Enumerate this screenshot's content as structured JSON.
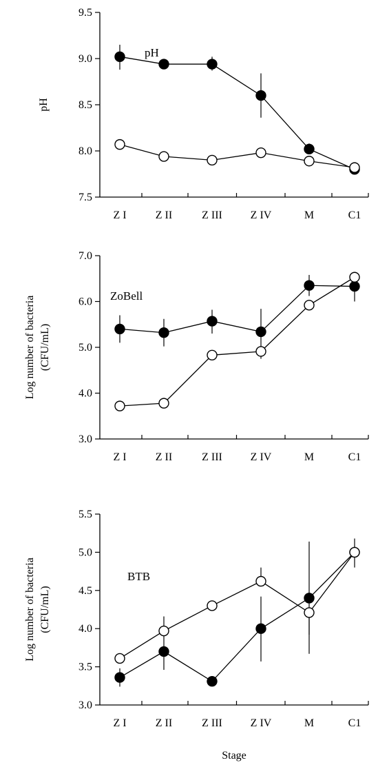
{
  "chart_data": [
    {
      "type": "line",
      "panel_label": "pH",
      "ylabel": "pH",
      "ylabel_lines": [
        "pH"
      ],
      "ylim": [
        7.5,
        9.5
      ],
      "yticks": [
        7.5,
        8.0,
        8.5,
        9.0,
        9.5
      ],
      "ytick_labels": [
        "7.5",
        "8.0",
        "8.5",
        "9.0",
        "9.5"
      ],
      "categories": [
        "Z I",
        "Z II",
        "Z III",
        "Z IV",
        "M",
        "C1"
      ],
      "series": [
        {
          "marker": "filled",
          "values": [
            9.02,
            8.94,
            8.94,
            8.6,
            8.02,
            7.8
          ],
          "err_low": [
            8.88,
            8.89,
            8.87,
            8.36,
            7.98,
            7.76
          ],
          "err_high": [
            9.15,
            8.98,
            9.02,
            8.84,
            8.08,
            7.84
          ]
        },
        {
          "marker": "open",
          "values": [
            8.07,
            7.94,
            7.9,
            7.98,
            7.89,
            7.82
          ],
          "err_low": [
            8.07,
            7.94,
            7.9,
            7.98,
            7.89,
            7.82
          ],
          "err_high": [
            8.07,
            7.94,
            7.9,
            7.98,
            7.89,
            7.82
          ]
        }
      ]
    },
    {
      "type": "line",
      "panel_label": "ZoBell",
      "ylabel": "Log number of bacteria (CFU/mL)",
      "ylabel_lines": [
        "Log number of bacteria",
        "(CFU/mL)"
      ],
      "ylim": [
        3.0,
        7.0
      ],
      "yticks": [
        3.0,
        4.0,
        5.0,
        6.0,
        7.0
      ],
      "ytick_labels": [
        "3.0",
        "4.0",
        "5.0",
        "6.0",
        "7.0"
      ],
      "categories": [
        "Z I",
        "Z II",
        "Z III",
        "Z IV",
        "M",
        "C1"
      ],
      "series": [
        {
          "marker": "filled",
          "values": [
            5.4,
            5.32,
            5.57,
            5.34,
            6.35,
            6.33
          ],
          "err_low": [
            5.1,
            5.02,
            5.3,
            4.9,
            6.12,
            6.0
          ],
          "err_high": [
            5.7,
            5.62,
            5.82,
            5.84,
            6.58,
            6.62
          ]
        },
        {
          "marker": "open",
          "values": [
            3.72,
            3.78,
            4.83,
            4.91,
            5.92,
            6.53
          ],
          "err_low": [
            3.72,
            3.78,
            4.83,
            4.75,
            5.92,
            6.53
          ],
          "err_high": [
            3.72,
            3.78,
            4.83,
            4.91,
            5.92,
            6.53
          ]
        }
      ]
    },
    {
      "type": "line",
      "panel_label": "BTB",
      "ylabel": "Log number of bacteria (CFU/mL)",
      "ylabel_lines": [
        "Log number of bacteria",
        "(CFU/mL)"
      ],
      "xlabel": "Stage",
      "ylim": [
        3.0,
        5.5
      ],
      "yticks": [
        3.0,
        3.5,
        4.0,
        4.5,
        5.0,
        5.5
      ],
      "ytick_labels": [
        "3.0",
        "3.5",
        "4.0",
        "4.5",
        "5.0",
        "5.5"
      ],
      "categories": [
        "Z I",
        "Z II",
        "Z III",
        "Z IV",
        "M",
        "C1"
      ],
      "series": [
        {
          "marker": "filled",
          "values": [
            3.36,
            3.7,
            3.31,
            4.0,
            4.4,
            5.0
          ],
          "err_low": [
            3.24,
            3.46,
            3.31,
            3.57,
            3.67,
            4.8
          ],
          "err_high": [
            3.48,
            4.16,
            3.31,
            4.42,
            5.14,
            5.18
          ]
        },
        {
          "marker": "open",
          "values": [
            3.61,
            3.97,
            4.3,
            4.62,
            4.21,
            5.0
          ],
          "err_low": [
            3.61,
            3.97,
            4.3,
            4.62,
            3.92,
            5.0
          ],
          "err_high": [
            3.61,
            3.97,
            4.3,
            4.8,
            4.21,
            5.0
          ]
        }
      ]
    }
  ]
}
